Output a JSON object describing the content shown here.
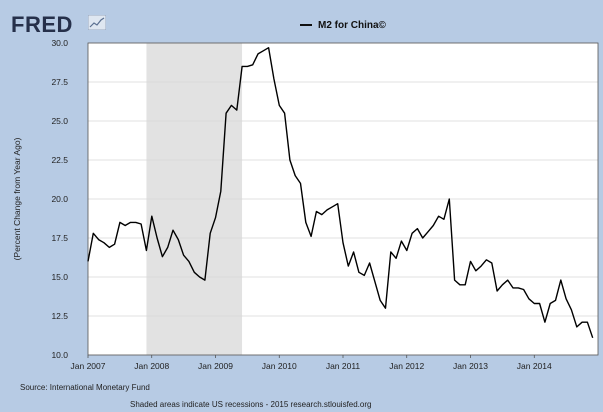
{
  "header": {
    "logo_text": "FRED",
    "legend_label": "M2 for China©"
  },
  "footer": {
    "source": "Source: International Monetary Fund",
    "note": "Shaded areas indicate US recessions - 2015 research.stlouisfed.org"
  },
  "colors": {
    "background": "#b7cbe4",
    "plot_background": "#ffffff",
    "recession_shade": "#e2e2e2",
    "line": "#000000"
  },
  "chart_data": {
    "type": "line",
    "title": "M2 for China©",
    "xlabel": "",
    "ylabel": "(Percent Change from Year Ago)",
    "ylim": [
      10.0,
      30.0
    ],
    "xlim": [
      "2007-01",
      "2015-01"
    ],
    "yticks": [
      "10.0",
      "12.5",
      "15.0",
      "17.5",
      "20.0",
      "22.5",
      "25.0",
      "27.5",
      "30.0"
    ],
    "xticks": [
      "Jan 2007",
      "Jan 2008",
      "Jan 2009",
      "Jan 2010",
      "Jan 2011",
      "Jan 2012",
      "Jan 2013",
      "Jan 2014"
    ],
    "grid": "horizontal",
    "recessions": [
      {
        "start": "2007-12",
        "end": "2009-06"
      }
    ],
    "series": [
      {
        "name": "M2 for China©",
        "points": [
          [
            "2007-01",
            16.0
          ],
          [
            "2007-02",
            17.8
          ],
          [
            "2007-03",
            17.4
          ],
          [
            "2007-04",
            17.2
          ],
          [
            "2007-05",
            16.9
          ],
          [
            "2007-06",
            17.1
          ],
          [
            "2007-07",
            18.5
          ],
          [
            "2007-08",
            18.3
          ],
          [
            "2007-09",
            18.5
          ],
          [
            "2007-10",
            18.5
          ],
          [
            "2007-11",
            18.4
          ],
          [
            "2007-12",
            16.7
          ],
          [
            "2008-01",
            18.9
          ],
          [
            "2008-02",
            17.5
          ],
          [
            "2008-03",
            16.3
          ],
          [
            "2008-04",
            16.9
          ],
          [
            "2008-05",
            18.0
          ],
          [
            "2008-06",
            17.4
          ],
          [
            "2008-07",
            16.4
          ],
          [
            "2008-08",
            16.0
          ],
          [
            "2008-09",
            15.3
          ],
          [
            "2008-10",
            15.0
          ],
          [
            "2008-11",
            14.8
          ],
          [
            "2008-12",
            17.8
          ],
          [
            "2009-01",
            18.8
          ],
          [
            "2009-02",
            20.5
          ],
          [
            "2009-03",
            25.5
          ],
          [
            "2009-04",
            26.0
          ],
          [
            "2009-05",
            25.7
          ],
          [
            "2009-06",
            28.5
          ],
          [
            "2009-07",
            28.5
          ],
          [
            "2009-08",
            28.6
          ],
          [
            "2009-09",
            29.3
          ],
          [
            "2009-10",
            29.5
          ],
          [
            "2009-11",
            29.7
          ],
          [
            "2009-12",
            27.7
          ],
          [
            "2010-01",
            26.0
          ],
          [
            "2010-02",
            25.5
          ],
          [
            "2010-03",
            22.5
          ],
          [
            "2010-04",
            21.5
          ],
          [
            "2010-05",
            21.0
          ],
          [
            "2010-06",
            18.5
          ],
          [
            "2010-07",
            17.6
          ],
          [
            "2010-08",
            19.2
          ],
          [
            "2010-09",
            19.0
          ],
          [
            "2010-10",
            19.3
          ],
          [
            "2010-11",
            19.5
          ],
          [
            "2010-12",
            19.7
          ],
          [
            "2011-01",
            17.2
          ],
          [
            "2011-02",
            15.7
          ],
          [
            "2011-03",
            16.6
          ],
          [
            "2011-04",
            15.3
          ],
          [
            "2011-05",
            15.1
          ],
          [
            "2011-06",
            15.9
          ],
          [
            "2011-07",
            14.7
          ],
          [
            "2011-08",
            13.5
          ],
          [
            "2011-09",
            13.0
          ],
          [
            "2011-10",
            16.6
          ],
          [
            "2011-11",
            16.2
          ],
          [
            "2011-12",
            17.3
          ],
          [
            "2012-01",
            16.7
          ],
          [
            "2012-02",
            17.8
          ],
          [
            "2012-03",
            18.1
          ],
          [
            "2012-04",
            17.5
          ],
          [
            "2012-05",
            17.9
          ],
          [
            "2012-06",
            18.3
          ],
          [
            "2012-07",
            18.9
          ],
          [
            "2012-08",
            18.7
          ],
          [
            "2012-09",
            20.0
          ],
          [
            "2012-10",
            14.8
          ],
          [
            "2012-11",
            14.5
          ],
          [
            "2012-12",
            14.5
          ],
          [
            "2013-01",
            16.0
          ],
          [
            "2013-02",
            15.4
          ],
          [
            "2013-03",
            15.7
          ],
          [
            "2013-04",
            16.1
          ],
          [
            "2013-05",
            15.9
          ],
          [
            "2013-06",
            14.1
          ],
          [
            "2013-07",
            14.5
          ],
          [
            "2013-08",
            14.8
          ],
          [
            "2013-09",
            14.3
          ],
          [
            "2013-10",
            14.3
          ],
          [
            "2013-11",
            14.2
          ],
          [
            "2013-12",
            13.6
          ],
          [
            "2014-01",
            13.3
          ],
          [
            "2014-02",
            13.3
          ],
          [
            "2014-03",
            12.1
          ],
          [
            "2014-04",
            13.3
          ],
          [
            "2014-05",
            13.5
          ],
          [
            "2014-06",
            14.8
          ],
          [
            "2014-07",
            13.6
          ],
          [
            "2014-08",
            12.9
          ],
          [
            "2014-09",
            11.8
          ],
          [
            "2014-10",
            12.1
          ],
          [
            "2014-11",
            12.1
          ],
          [
            "2014-12",
            11.1
          ]
        ]
      }
    ]
  }
}
